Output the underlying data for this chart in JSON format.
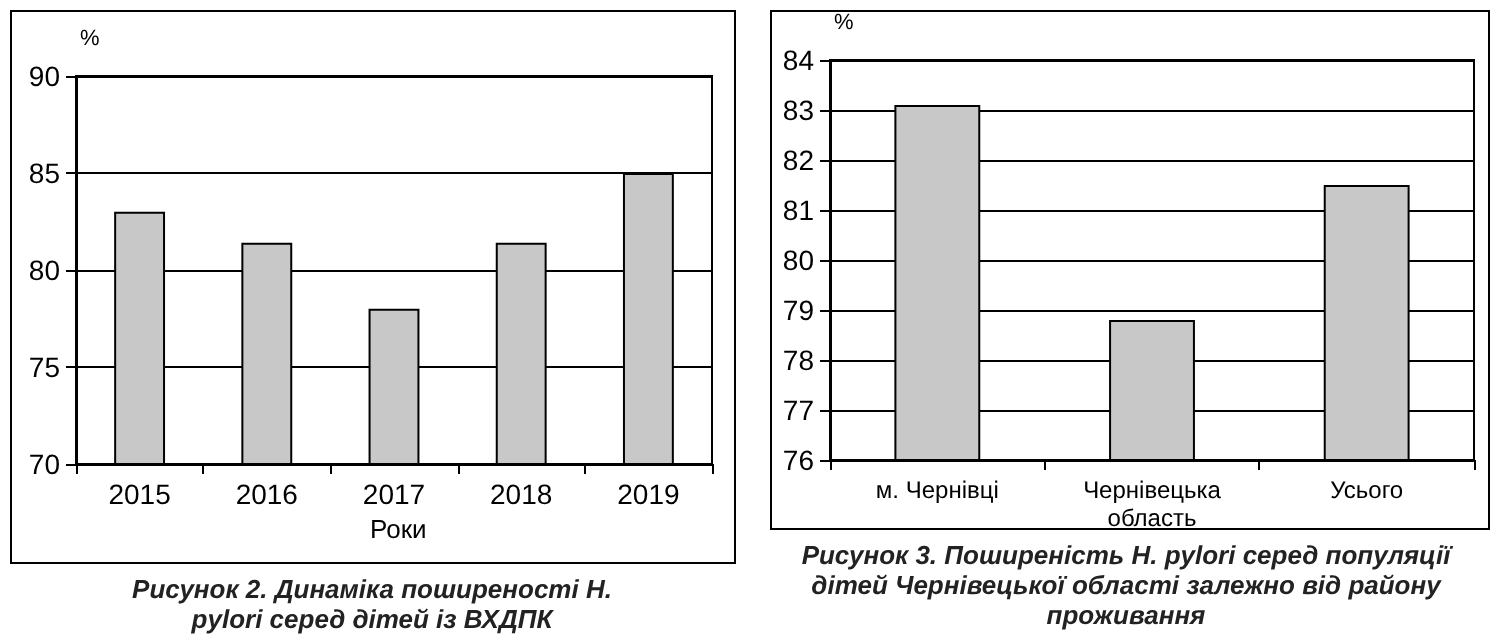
{
  "chart_data": [
    {
      "type": "bar",
      "title": "Рисунок 2. Динаміка поширеності H. pylori серед дітей із ВХДПК",
      "xlabel": "Роки",
      "ylabel": "%",
      "categories": [
        "2015",
        "2016",
        "2017",
        "2018",
        "2019"
      ],
      "values": [
        83,
        81.4,
        78,
        81.4,
        85
      ],
      "color": "#c8c8c8",
      "ylim": [
        70,
        90
      ],
      "yticks": [
        70,
        75,
        80,
        85,
        90
      ],
      "grid": "y"
    },
    {
      "type": "bar",
      "title": "Рисунок 3. Поширеність H. pylori серед популяції дітей Чернівецької області залежно від району проживання",
      "ylabel": "%",
      "categories": [
        "м. Чернівці",
        "Чернівецька область",
        "Усього"
      ],
      "values": [
        83.1,
        78.8,
        81.5
      ],
      "color": "#c8c8c8",
      "ylim": [
        76,
        84
      ],
      "yticks": [
        76,
        77,
        78,
        79,
        80,
        81,
        82,
        83,
        84
      ],
      "grid": "y"
    }
  ]
}
